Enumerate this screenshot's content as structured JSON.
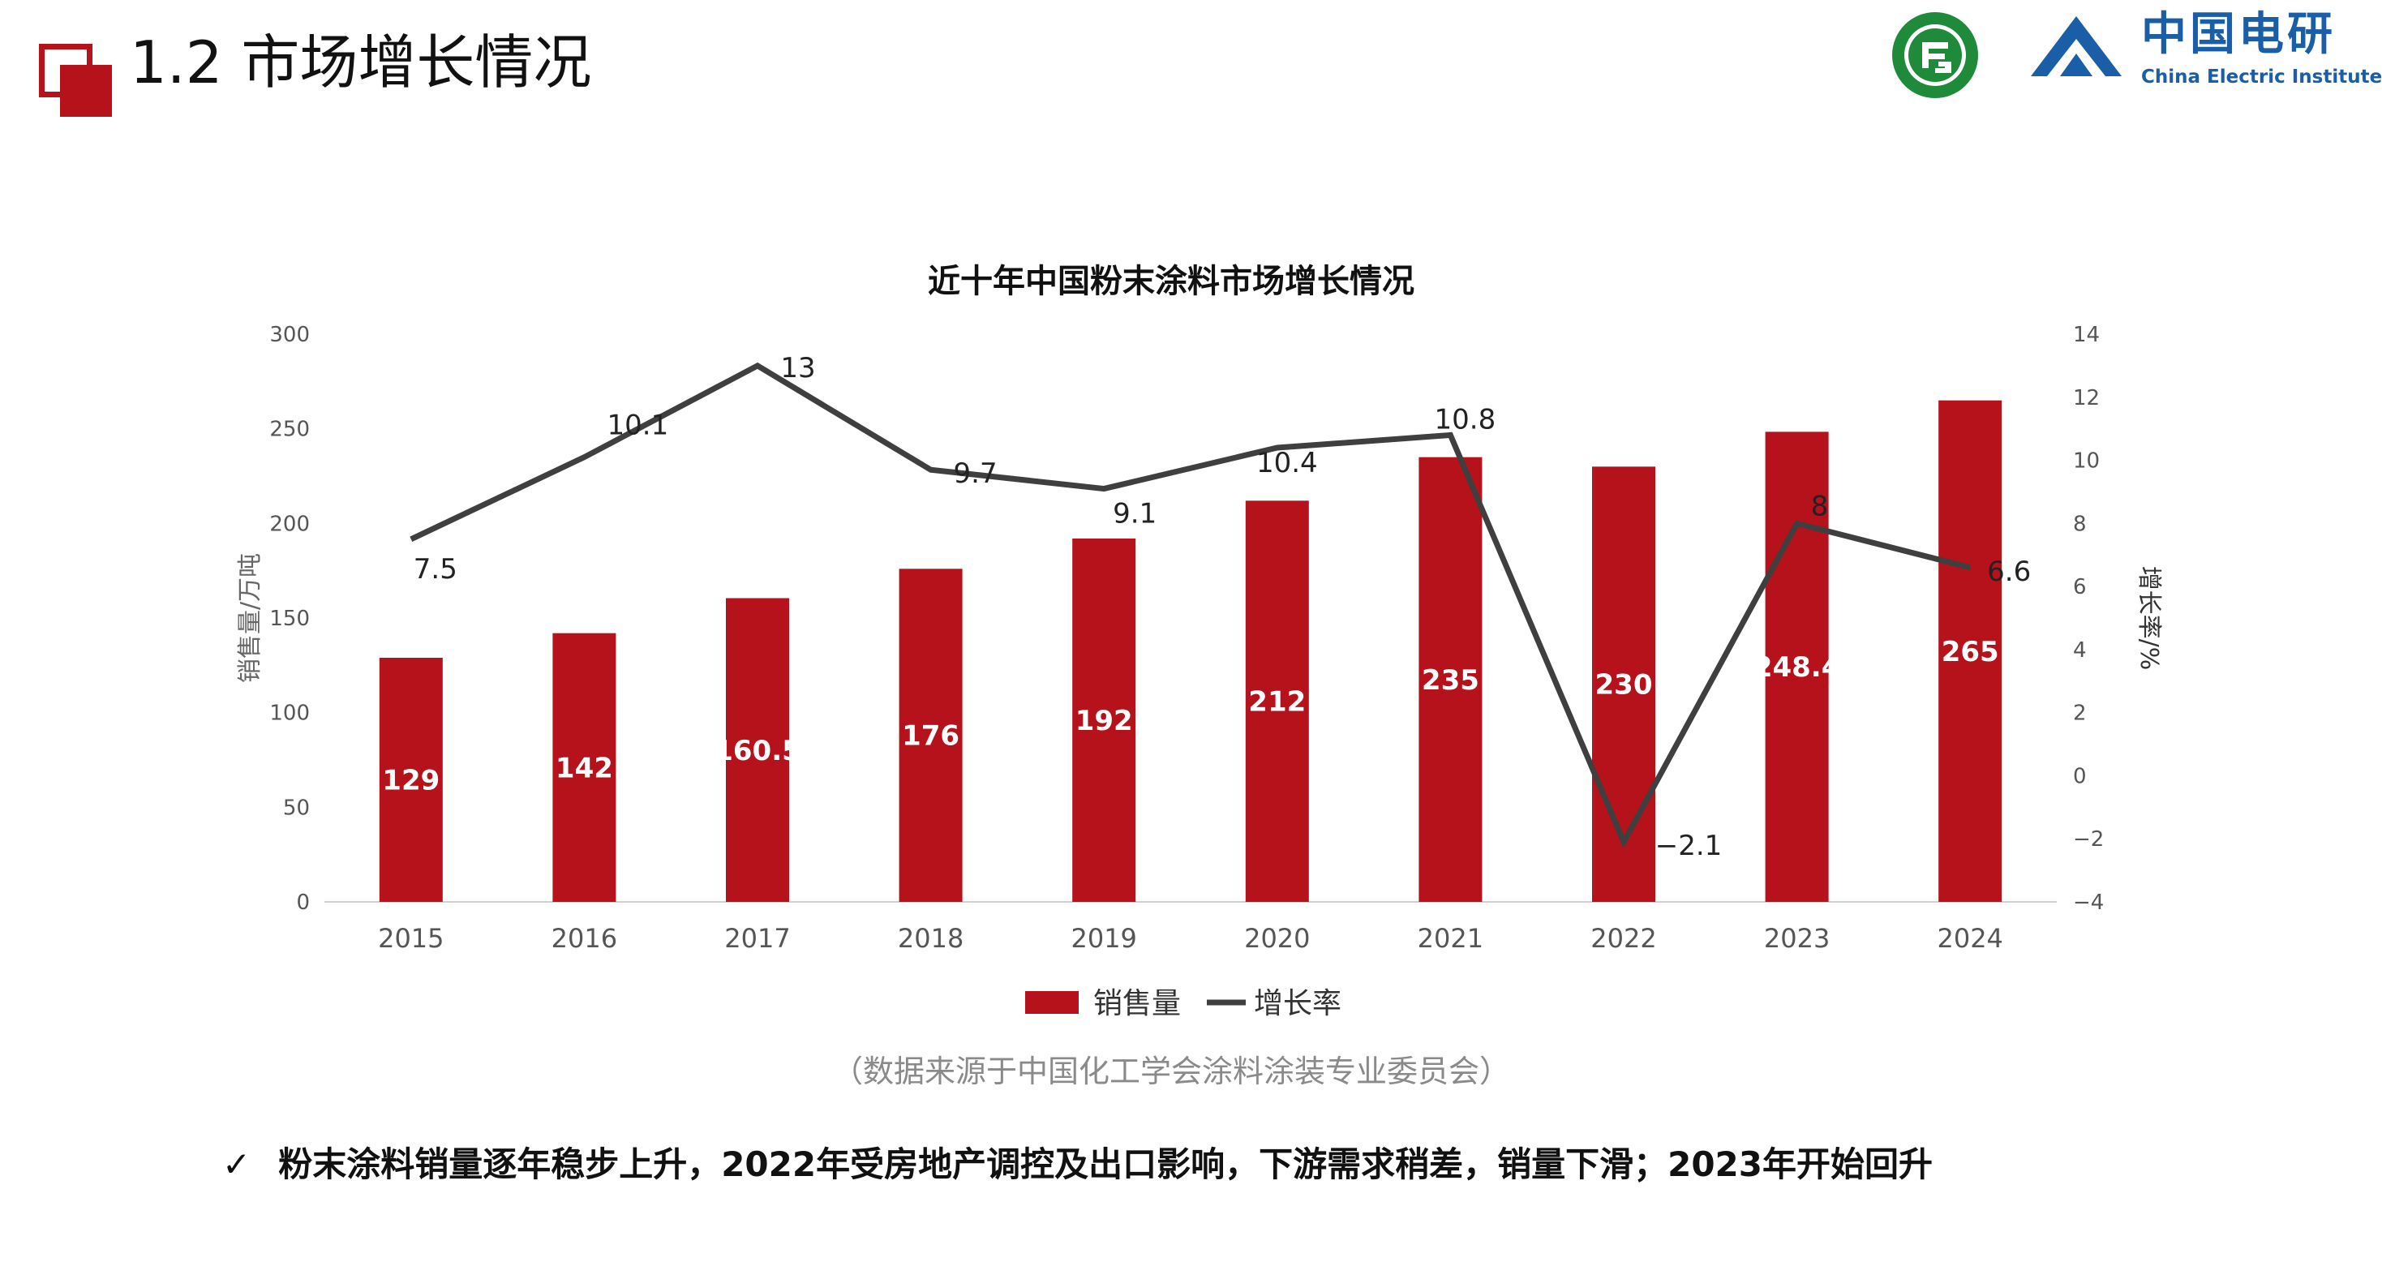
{
  "header": {
    "title": "1.2 市场增长情况",
    "logo_cn": "中国电研",
    "logo_en": "China Electric Institute"
  },
  "colors": {
    "accent": "#b5121b",
    "line": "#3f3f3f",
    "logo_blue": "#1a5ea8",
    "logo_green": "#1f8a3a"
  },
  "icons": {
    "bullet": "check-icon"
  },
  "chart_data": {
    "type": "bar",
    "title": "近十年中国粉末涂料市场增长情况",
    "categories": [
      "2015",
      "2016",
      "2017",
      "2018",
      "2019",
      "2020",
      "2021",
      "2022",
      "2023",
      "2024"
    ],
    "series": [
      {
        "name": "销售量",
        "type": "bar",
        "axis": "left",
        "values": [
          129,
          142,
          160.5,
          176,
          192,
          212,
          235,
          230,
          248.4,
          265
        ],
        "labels": [
          "129",
          "142",
          "160.5",
          "176",
          "192",
          "212",
          "235",
          "230",
          "248.4",
          "265"
        ]
      },
      {
        "name": "增长率",
        "type": "line",
        "axis": "right",
        "values": [
          7.5,
          10.1,
          13,
          9.7,
          9.1,
          10.4,
          10.8,
          -2.1,
          8,
          6.6
        ],
        "labels": [
          "7.5",
          "10.1",
          "13",
          "9.7",
          "9.1",
          "10.4",
          "10.8",
          "−2.1",
          "8",
          "6.6"
        ]
      }
    ],
    "ylabel": "销售量/万吨",
    "y2label": "增长率/%",
    "ylim": [
      0,
      300
    ],
    "y2lim": [
      -4,
      14
    ],
    "yticks": [
      "0",
      "50",
      "100",
      "150",
      "200",
      "250",
      "300"
    ],
    "y2ticks": [
      "−4",
      "−2",
      "0",
      "2",
      "4",
      "6",
      "8",
      "10",
      "12",
      "14"
    ],
    "grid": false,
    "legend": "bottom"
  },
  "footnote": "（数据来源于中国化工学会涂料涂装专业委员会）",
  "bullet_text": "粉末涂料销量逐年稳步上升，2022年受房地产调控及出口影响，下游需求稍差，销量下滑；2023年开始回升"
}
